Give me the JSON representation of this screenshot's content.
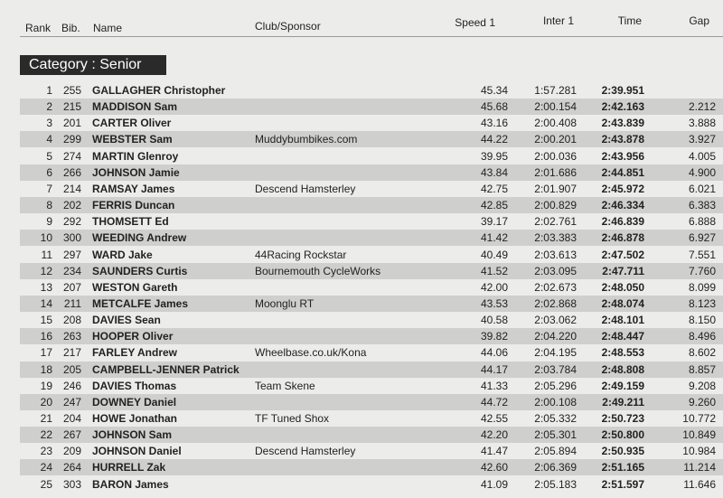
{
  "header": {
    "rank": "Rank",
    "bib": "Bib.",
    "name": "Name",
    "club": "Club/Sponsor",
    "speed": "Speed 1",
    "inter": "Inter 1",
    "time": "Time",
    "gap": "Gap"
  },
  "category": "Category : Senior",
  "rows": [
    {
      "rank": "1",
      "bib": "255",
      "name": "GALLAGHER Christopher",
      "speed": "45.34",
      "inter": "1:57.281",
      "time": "2:39.951"
    },
    {
      "rank": "2",
      "bib": "215",
      "name": "MADDISON Sam",
      "speed": "45.68",
      "inter": "2:00.154",
      "time": "2:42.163",
      "gap": "2.212"
    },
    {
      "rank": "3",
      "bib": "201",
      "name": "CARTER Oliver",
      "speed": "43.16",
      "inter": "2:00.408",
      "time": "2:43.839",
      "gap": "3.888"
    },
    {
      "rank": "4",
      "bib": "299",
      "name": "WEBSTER Sam",
      "club": "Muddybumbikes.com",
      "speed": "44.22",
      "inter": "2:00.201",
      "time": "2:43.878",
      "gap": "3.927"
    },
    {
      "rank": "5",
      "bib": "274",
      "name": "MARTIN Glenroy",
      "speed": "39.95",
      "inter": "2:00.036",
      "time": "2:43.956",
      "gap": "4.005"
    },
    {
      "rank": "6",
      "bib": "266",
      "name": "JOHNSON Jamie",
      "speed": "43.84",
      "inter": "2:01.686",
      "time": "2:44.851",
      "gap": "4.900"
    },
    {
      "rank": "7",
      "bib": "214",
      "name": "RAMSAY James",
      "club": "Descend Hamsterley",
      "speed": "42.75",
      "inter": "2:01.907",
      "time": "2:45.972",
      "gap": "6.021"
    },
    {
      "rank": "8",
      "bib": "202",
      "name": "FERRIS Duncan",
      "speed": "42.85",
      "inter": "2:00.829",
      "time": "2:46.334",
      "gap": "6.383"
    },
    {
      "rank": "9",
      "bib": "292",
      "name": "THOMSETT Ed",
      "speed": "39.17",
      "inter": "2:02.761",
      "time": "2:46.839",
      "gap": "6.888"
    },
    {
      "rank": "10",
      "bib": "300",
      "name": "WEEDING Andrew",
      "speed": "41.42",
      "inter": "2:03.383",
      "time": "2:46.878",
      "gap": "6.927"
    },
    {
      "rank": "11",
      "bib": "297",
      "name": "WARD Jake",
      "club": "44Racing Rockstar",
      "speed": "40.49",
      "inter": "2:03.613",
      "time": "2:47.502",
      "gap": "7.551"
    },
    {
      "rank": "12",
      "bib": "234",
      "name": "SAUNDERS Curtis",
      "club": "Bournemouth CycleWorks",
      "speed": "41.52",
      "inter": "2:03.095",
      "time": "2:47.711",
      "gap": "7.760"
    },
    {
      "rank": "13",
      "bib": "207",
      "name": "WESTON Gareth",
      "speed": "42.00",
      "inter": "2:02.673",
      "time": "2:48.050",
      "gap": "8.099"
    },
    {
      "rank": "14",
      "bib": "211",
      "name": "METCALFE James",
      "club": "Moonglu RT",
      "speed": "43.53",
      "inter": "2:02.868",
      "time": "2:48.074",
      "gap": "8.123"
    },
    {
      "rank": "15",
      "bib": "208",
      "name": "DAVIES Sean",
      "speed": "40.58",
      "inter": "2:03.062",
      "time": "2:48.101",
      "gap": "8.150"
    },
    {
      "rank": "16",
      "bib": "263",
      "name": "HOOPER Oliver",
      "speed": "39.82",
      "inter": "2:04.220",
      "time": "2:48.447",
      "gap": "8.496"
    },
    {
      "rank": "17",
      "bib": "217",
      "name": "FARLEY Andrew",
      "club": "Wheelbase.co.uk/Kona",
      "speed": "44.06",
      "inter": "2:04.195",
      "time": "2:48.553",
      "gap": "8.602"
    },
    {
      "rank": "18",
      "bib": "205",
      "name": "CAMPBELL-JENNER Patrick",
      "speed": "44.17",
      "inter": "2:03.784",
      "time": "2:48.808",
      "gap": "8.857"
    },
    {
      "rank": "19",
      "bib": "246",
      "name": "DAVIES Thomas",
      "club": "Team Skene",
      "speed": "41.33",
      "inter": "2:05.296",
      "time": "2:49.159",
      "gap": "9.208"
    },
    {
      "rank": "20",
      "bib": "247",
      "name": "DOWNEY Daniel",
      "speed": "44.72",
      "inter": "2:00.108",
      "time": "2:49.211",
      "gap": "9.260"
    },
    {
      "rank": "21",
      "bib": "204",
      "name": "HOWE Jonathan",
      "club": "TF Tuned Shox",
      "speed": "42.55",
      "inter": "2:05.332",
      "time": "2:50.723",
      "gap": "10.772"
    },
    {
      "rank": "22",
      "bib": "267",
      "name": "JOHNSON Sam",
      "speed": "42.20",
      "inter": "2:05.301",
      "time": "2:50.800",
      "gap": "10.849"
    },
    {
      "rank": "23",
      "bib": "209",
      "name": "JOHNSON Daniel",
      "club": "Descend Hamsterley",
      "speed": "41.47",
      "inter": "2:05.894",
      "time": "2:50.935",
      "gap": "10.984"
    },
    {
      "rank": "24",
      "bib": "264",
      "name": "HURRELL Zak",
      "speed": "42.60",
      "inter": "2:06.369",
      "time": "2:51.165",
      "gap": "11.214"
    },
    {
      "rank": "25",
      "bib": "303",
      "name": "BARON James",
      "speed": "41.09",
      "inter": "2:05.183",
      "time": "2:51.597",
      "gap": "11.646"
    }
  ]
}
